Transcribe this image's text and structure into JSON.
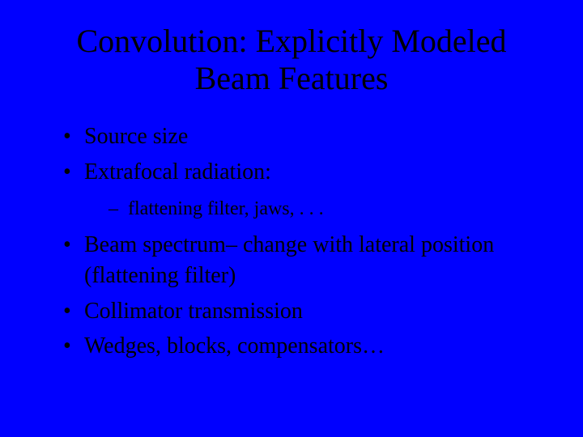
{
  "background_color": "#0000ff",
  "text_color": "#000000",
  "font_family": "Times New Roman",
  "title": {
    "line1": "Convolution: Explicitly Modeled",
    "line2": "Beam Features",
    "fontsize": 40
  },
  "bullets": {
    "fontsize_level1": 28,
    "fontsize_level2": 24,
    "items": [
      {
        "text": "Source size"
      },
      {
        "text": "Extrafocal radiation:",
        "sub": [
          "flattening filter, jaws, . . ."
        ]
      },
      {
        "text": "Beam spectrum– change with lateral position (flattening filter)"
      },
      {
        "text": "Collimator transmission"
      },
      {
        "text": "Wedges, blocks, compensators…"
      }
    ]
  }
}
